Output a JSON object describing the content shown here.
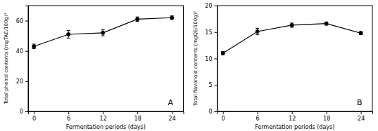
{
  "chart_data": [
    {
      "type": "line",
      "x": [
        0,
        6,
        12,
        18,
        24
      ],
      "values": [
        43,
        51,
        52,
        61,
        62
      ],
      "errors": [
        1.5,
        2.5,
        2.0,
        1.5,
        1.2
      ],
      "xlabel": "Fermentation periods (days)",
      "ylabel": "Total phenol contents (mgTAE/100g)¹",
      "annotation": "A",
      "xlim": [
        -1,
        26
      ],
      "xticks": [
        0,
        6,
        12,
        18,
        24
      ],
      "ylim": [
        0,
        70
      ],
      "yticks": [
        0,
        20,
        40,
        60
      ],
      "color": "#000000",
      "marker": "circle",
      "grid": false
    },
    {
      "type": "line",
      "x": [
        0,
        6,
        12,
        18,
        24
      ],
      "values": [
        11,
        15.1,
        16.3,
        16.6,
        14.8
      ],
      "errors": [
        0.3,
        0.6,
        0.4,
        0.3,
        0.3
      ],
      "xlabel": "Fermentation periods (days)",
      "ylabel": "Total flavonoid contents (mgQE/100g)²",
      "annotation": "B",
      "xlim": [
        -1,
        26
      ],
      "xticks": [
        0,
        6,
        12,
        18,
        24
      ],
      "ylim": [
        0,
        20
      ],
      "yticks": [
        0,
        5,
        10,
        15,
        20
      ],
      "color": "#000000",
      "marker": "circle",
      "grid": false
    }
  ]
}
